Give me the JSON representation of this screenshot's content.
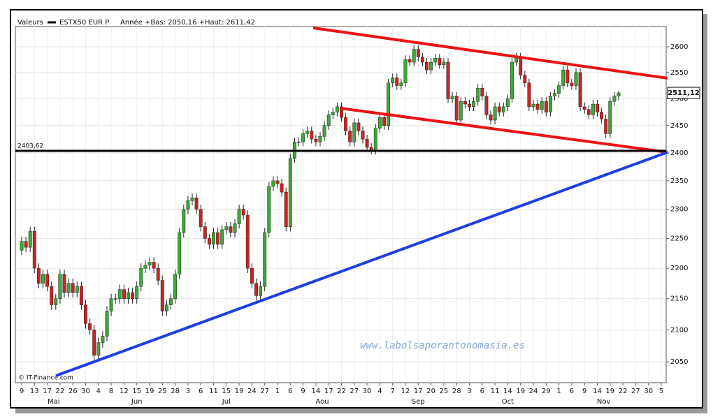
{
  "chart_data": {
    "type": "candlestick",
    "legend_title": "Valeurs",
    "series_name": "ESTX50 EUR P",
    "subtitle": "Année +Bas: 2050,16 +Haut: 2611,42",
    "watermark": "www.labolsaporantonomasia.es",
    "source": "© IT-Finance.com",
    "log_scale": true,
    "grid": true,
    "up_color": "#3aaa35",
    "down_color": "#cc2222",
    "ylim": [
      2018,
      2640
    ],
    "yticks": [
      2050,
      2100,
      2150,
      2200,
      2250,
      2300,
      2350,
      2400,
      2450,
      2500,
      2550,
      2600
    ],
    "hline": {
      "value": 2403.62,
      "label": "2403,62"
    },
    "last_price": {
      "value": 2511.12,
      "label": "2511,12"
    },
    "months": [
      {
        "name": "Mai",
        "days": [
          9,
          13,
          17,
          22,
          26,
          30
        ]
      },
      {
        "name": "Jun",
        "days": [
          4,
          8,
          12,
          15,
          19,
          25,
          28
        ]
      },
      {
        "name": "Jul",
        "days": [
          3,
          6,
          11,
          15,
          19,
          24,
          27
        ]
      },
      {
        "name": "Aou",
        "days": [
          1,
          6,
          9,
          14,
          17,
          22,
          27,
          30
        ]
      },
      {
        "name": "Sep",
        "days": [
          4,
          7,
          12,
          17,
          20,
          25,
          28
        ]
      },
      {
        "name": "Oct",
        "days": [
          3,
          6,
          11,
          14,
          19,
          24,
          29
        ]
      },
      {
        "name": "Nov",
        "days": [
          1,
          6,
          9,
          14,
          19,
          22,
          27,
          30
        ]
      },
      {
        "name": null,
        "days": [
          5
        ]
      }
    ],
    "open": [
      2230,
      2245,
      2235,
      2262,
      2200,
      2175,
      2190,
      2170,
      2140,
      2150,
      2190,
      2160,
      2175,
      2160,
      2170,
      2140,
      2110,
      2100,
      2060,
      2080,
      2090,
      2130,
      2150,
      2150,
      2165,
      2150,
      2160,
      2150,
      2170,
      2200,
      2205,
      2210,
      2200,
      2180,
      2130,
      2140,
      2150,
      2190,
      2260,
      2300,
      2315,
      2320,
      2300,
      2270,
      2250,
      2240,
      2260,
      2240,
      2265,
      2270,
      2260,
      2275,
      2300,
      2290,
      2200,
      2175,
      2155,
      2170,
      2260,
      2340,
      2350,
      2345,
      2330,
      2270,
      2390,
      2420,
      2420,
      2435,
      2440,
      2425,
      2420,
      2430,
      2450,
      2470,
      2475,
      2485,
      2465,
      2440,
      2420,
      2455,
      2440,
      2425,
      2410,
      2405,
      2445,
      2465,
      2450,
      2530,
      2540,
      2525,
      2530,
      2575,
      2570,
      2595,
      2580,
      2570,
      2555,
      2570,
      2578,
      2565,
      2570,
      2500,
      2505,
      2460,
      2495,
      2490,
      2485,
      2495,
      2520,
      2505,
      2470,
      2460,
      2485,
      2475,
      2485,
      2500,
      2570,
      2580,
      2545,
      2530,
      2485,
      2490,
      2480,
      2495,
      2475,
      2505,
      2510,
      2525,
      2555,
      2530,
      2525,
      2550,
      2485,
      2480,
      2470,
      2490,
      2475,
      2462,
      2435,
      2495,
      2505
    ],
    "high": [
      2253,
      2253,
      2270,
      2270,
      2208,
      2198,
      2198,
      2178,
      2158,
      2198,
      2198,
      2183,
      2183,
      2178,
      2178,
      2148,
      2118,
      2108,
      2088,
      2098,
      2138,
      2158,
      2158,
      2173,
      2173,
      2168,
      2168,
      2178,
      2208,
      2213,
      2218,
      2218,
      2208,
      2188,
      2148,
      2158,
      2198,
      2268,
      2308,
      2323,
      2328,
      2328,
      2308,
      2278,
      2258,
      2268,
      2268,
      2273,
      2278,
      2278,
      2283,
      2308,
      2308,
      2298,
      2208,
      2183,
      2178,
      2268,
      2348,
      2358,
      2358,
      2353,
      2338,
      2398,
      2428,
      2428,
      2443,
      2448,
      2448,
      2433,
      2438,
      2458,
      2478,
      2483,
      2493,
      2493,
      2473,
      2448,
      2463,
      2463,
      2448,
      2433,
      2418,
      2453,
      2473,
      2473,
      2538,
      2548,
      2548,
      2538,
      2583,
      2583,
      2603,
      2603,
      2588,
      2578,
      2578,
      2586,
      2586,
      2578,
      2578,
      2513,
      2513,
      2503,
      2503,
      2498,
      2503,
      2528,
      2528,
      2513,
      2478,
      2493,
      2493,
      2493,
      2508,
      2578,
      2588,
      2588,
      2553,
      2538,
      2498,
      2498,
      2503,
      2503,
      2513,
      2518,
      2533,
      2563,
      2563,
      2538,
      2558,
      2558,
      2493,
      2488,
      2498,
      2498,
      2483,
      2470,
      2503,
      2513,
      2515
    ],
    "low": [
      2222,
      2227,
      2227,
      2192,
      2167,
      2167,
      2162,
      2132,
      2132,
      2142,
      2152,
      2152,
      2152,
      2152,
      2132,
      2102,
      2092,
      2052,
      2052,
      2072,
      2082,
      2122,
      2142,
      2142,
      2142,
      2142,
      2142,
      2142,
      2162,
      2192,
      2197,
      2192,
      2172,
      2122,
      2122,
      2132,
      2142,
      2182,
      2252,
      2292,
      2307,
      2292,
      2262,
      2242,
      2232,
      2232,
      2232,
      2232,
      2257,
      2252,
      2252,
      2267,
      2282,
      2192,
      2167,
      2147,
      2147,
      2162,
      2252,
      2332,
      2337,
      2322,
      2262,
      2262,
      2382,
      2412,
      2412,
      2427,
      2417,
      2412,
      2412,
      2422,
      2442,
      2462,
      2467,
      2457,
      2432,
      2412,
      2412,
      2432,
      2417,
      2402,
      2397,
      2397,
      2437,
      2442,
      2442,
      2522,
      2517,
      2517,
      2522,
      2562,
      2562,
      2572,
      2562,
      2547,
      2547,
      2562,
      2557,
      2557,
      2492,
      2492,
      2452,
      2452,
      2482,
      2477,
      2477,
      2487,
      2497,
      2462,
      2452,
      2452,
      2467,
      2467,
      2477,
      2492,
      2562,
      2537,
      2522,
      2477,
      2477,
      2472,
      2472,
      2467,
      2467,
      2497,
      2502,
      2517,
      2522,
      2517,
      2517,
      2477,
      2472,
      2462,
      2462,
      2467,
      2454,
      2427,
      2427,
      2487,
      2497
    ],
    "close": [
      2245,
      2235,
      2262,
      2200,
      2175,
      2190,
      2170,
      2140,
      2150,
      2190,
      2160,
      2175,
      2160,
      2170,
      2140,
      2110,
      2100,
      2060,
      2080,
      2090,
      2130,
      2150,
      2150,
      2165,
      2150,
      2160,
      2150,
      2170,
      2200,
      2205,
      2210,
      2200,
      2180,
      2130,
      2140,
      2150,
      2190,
      2260,
      2300,
      2315,
      2320,
      2300,
      2270,
      2250,
      2240,
      2260,
      2240,
      2265,
      2270,
      2260,
      2275,
      2300,
      2290,
      2200,
      2175,
      2155,
      2170,
      2260,
      2340,
      2350,
      2345,
      2330,
      2270,
      2390,
      2420,
      2420,
      2435,
      2440,
      2425,
      2420,
      2430,
      2450,
      2470,
      2475,
      2485,
      2465,
      2440,
      2420,
      2455,
      2440,
      2425,
      2410,
      2405,
      2445,
      2465,
      2450,
      2530,
      2540,
      2525,
      2530,
      2575,
      2570,
      2595,
      2580,
      2570,
      2555,
      2570,
      2578,
      2565,
      2570,
      2500,
      2505,
      2460,
      2495,
      2490,
      2485,
      2495,
      2520,
      2505,
      2470,
      2460,
      2485,
      2475,
      2485,
      2500,
      2570,
      2580,
      2545,
      2530,
      2485,
      2490,
      2480,
      2495,
      2475,
      2505,
      2510,
      2525,
      2555,
      2530,
      2525,
      2550,
      2485,
      2480,
      2470,
      2490,
      2475,
      2462,
      2435,
      2495,
      2505,
      2511.12
    ]
  }
}
